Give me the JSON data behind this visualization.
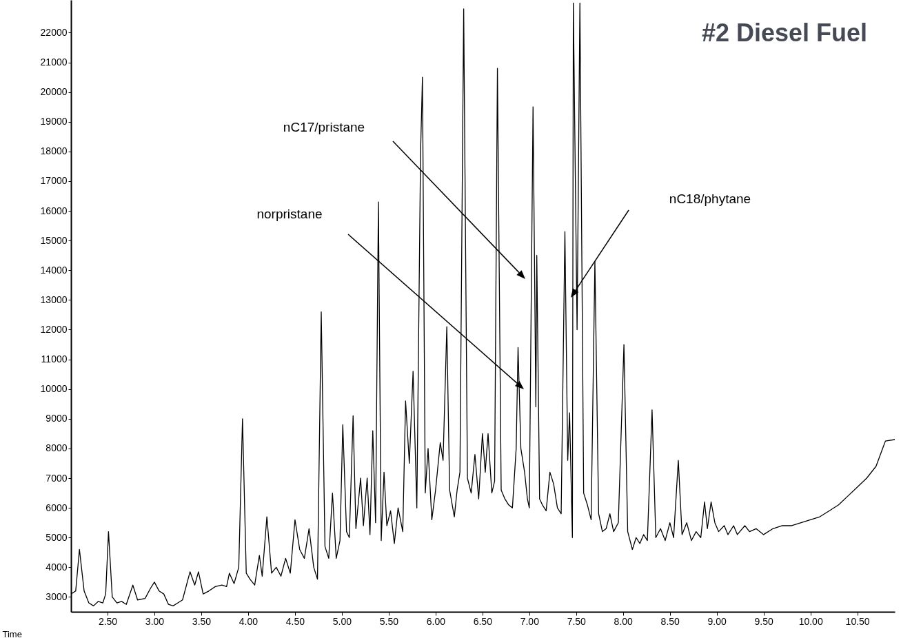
{
  "chart_data": {
    "type": "line",
    "title": "#2 Diesel Fuel",
    "xlabel": "Time",
    "x": [
      2.11,
      2.16,
      2.2,
      2.25,
      2.3,
      2.35,
      2.4,
      2.45,
      2.48,
      2.51,
      2.55,
      2.6,
      2.65,
      2.7,
      2.77,
      2.82,
      2.9,
      2.96,
      3.0,
      3.05,
      3.1,
      3.15,
      3.2,
      3.25,
      3.3,
      3.38,
      3.43,
      3.47,
      3.52,
      3.58,
      3.65,
      3.72,
      3.77,
      3.8,
      3.85,
      3.9,
      3.94,
      3.98,
      4.02,
      4.07,
      4.12,
      4.15,
      4.2,
      4.25,
      4.3,
      4.35,
      4.4,
      4.45,
      4.5,
      4.55,
      4.6,
      4.65,
      4.7,
      4.74,
      4.78,
      4.82,
      4.86,
      4.9,
      4.94,
      4.98,
      5.01,
      5.05,
      5.08,
      5.12,
      5.15,
      5.2,
      5.23,
      5.27,
      5.3,
      5.33,
      5.36,
      5.39,
      5.42,
      5.45,
      5.48,
      5.52,
      5.56,
      5.6,
      5.65,
      5.68,
      5.72,
      5.76,
      5.8,
      5.84,
      5.86,
      5.89,
      5.92,
      5.96,
      6.0,
      6.05,
      6.08,
      6.12,
      6.15,
      6.2,
      6.23,
      6.26,
      6.3,
      6.34,
      6.38,
      6.42,
      6.46,
      6.5,
      6.53,
      6.56,
      6.6,
      6.63,
      6.66,
      6.7,
      6.74,
      6.78,
      6.82,
      6.86,
      6.88,
      6.91,
      6.95,
      6.98,
      7.0,
      7.04,
      7.07,
      7.08,
      7.11,
      7.14,
      7.18,
      7.22,
      7.26,
      7.3,
      7.34,
      7.38,
      7.41,
      7.43,
      7.46,
      7.47,
      7.51,
      7.54,
      7.58,
      7.62,
      7.66,
      7.7,
      7.74,
      7.78,
      7.82,
      7.86,
      7.9,
      7.95,
      8.01,
      8.05,
      8.1,
      8.14,
      8.18,
      8.22,
      8.26,
      8.31,
      8.35,
      8.4,
      8.45,
      8.5,
      8.54,
      8.59,
      8.63,
      8.68,
      8.73,
      8.78,
      8.83,
      8.87,
      8.9,
      8.94,
      8.98,
      9.02,
      9.08,
      9.12,
      9.18,
      9.22,
      9.3,
      9.35,
      9.42,
      9.5,
      9.6,
      9.7,
      9.8,
      9.9,
      10.0,
      10.1,
      10.2,
      10.3,
      10.4,
      10.5,
      10.6,
      10.7,
      10.77,
      10.8,
      10.9
    ],
    "series": [
      {
        "color": "#000000",
        "values": [
          3100,
          3200,
          4600,
          3200,
          2800,
          2700,
          2850,
          2800,
          3100,
          5200,
          3000,
          2800,
          2850,
          2750,
          3400,
          2900,
          2950,
          3300,
          3500,
          3200,
          3100,
          2750,
          2700,
          2800,
          2900,
          3850,
          3400,
          3850,
          3100,
          3200,
          3350,
          3400,
          3350,
          3800,
          3450,
          4000,
          9000,
          3800,
          3600,
          3400,
          4400,
          3700,
          5700,
          3800,
          4000,
          3700,
          4300,
          3800,
          5600,
          4600,
          4300,
          5300,
          4000,
          3600,
          12600,
          4700,
          4300,
          6500,
          4300,
          4900,
          8800,
          5200,
          5000,
          9100,
          5300,
          7000,
          5400,
          7000,
          5100,
          8600,
          5500,
          16300,
          4900,
          7200,
          5400,
          5900,
          4800,
          6000,
          5200,
          9600,
          7500,
          10600,
          6000,
          18000,
          20500,
          6500,
          8000,
          5600,
          6600,
          8200,
          7600,
          12100,
          6600,
          5700,
          6600,
          7200,
          22800,
          7000,
          6500,
          7800,
          6300,
          8500,
          7200,
          8500,
          6500,
          6900,
          20800,
          6600,
          6300,
          6100,
          6000,
          8000,
          11400,
          8000,
          7200,
          6300,
          6000,
          19500,
          9400,
          14500,
          6300,
          6100,
          5900,
          7200,
          6800,
          6000,
          5800,
          15300,
          7600,
          9200,
          5000,
          23000,
          12000,
          23000,
          6500,
          6100,
          5600,
          14300,
          5800,
          5200,
          5300,
          5800,
          5200,
          5500,
          11500,
          5200,
          4600,
          5000,
          4800,
          5100,
          4900,
          9300,
          5000,
          5300,
          4900,
          5500,
          5000,
          7600,
          5100,
          5500,
          4900,
          5200,
          5000,
          6200,
          5300,
          6200,
          5500,
          5200,
          5400,
          5100,
          5400,
          5100,
          5400,
          5200,
          5300,
          5100,
          5300,
          5400,
          5400,
          5500,
          5600,
          5700,
          5900,
          6100,
          6400,
          6700,
          7000,
          7400,
          8000,
          8250,
          8300
        ]
      }
    ],
    "xlim": [
      2.11,
      10.9
    ],
    "ylim": [
      2500,
      23100
    ],
    "xticks": [
      {
        "value": 2.5,
        "label": "2.50"
      },
      {
        "value": 3,
        "label": "3.00"
      },
      {
        "value": 3.5,
        "label": "3.50"
      },
      {
        "value": 4,
        "label": "4.00"
      },
      {
        "value": 4.5,
        "label": "4.50"
      },
      {
        "value": 5,
        "label": "5.00"
      },
      {
        "value": 5.5,
        "label": "5.50"
      },
      {
        "value": 6,
        "label": "6.00"
      },
      {
        "value": 6.5,
        "label": "6.50"
      },
      {
        "value": 7,
        "label": "7.00"
      },
      {
        "value": 7.5,
        "label": "7.50"
      },
      {
        "value": 8,
        "label": "8.00"
      },
      {
        "value": 8.5,
        "label": "8.50"
      },
      {
        "value": 9,
        "label": "9.00"
      },
      {
        "value": 9.5,
        "label": "9.50"
      },
      {
        "value": 10,
        "label": "10.00"
      },
      {
        "value": 10.5,
        "label": "10.50"
      }
    ],
    "yticks": [
      3000,
      4000,
      5000,
      6000,
      7000,
      8000,
      9000,
      10000,
      11000,
      12000,
      13000,
      14000,
      15000,
      16000,
      17000,
      18000,
      19000,
      20000,
      21000,
      22000
    ],
    "annotations": [
      "norpristane",
      "nC17/pristane",
      "nC18/phytane"
    ]
  }
}
